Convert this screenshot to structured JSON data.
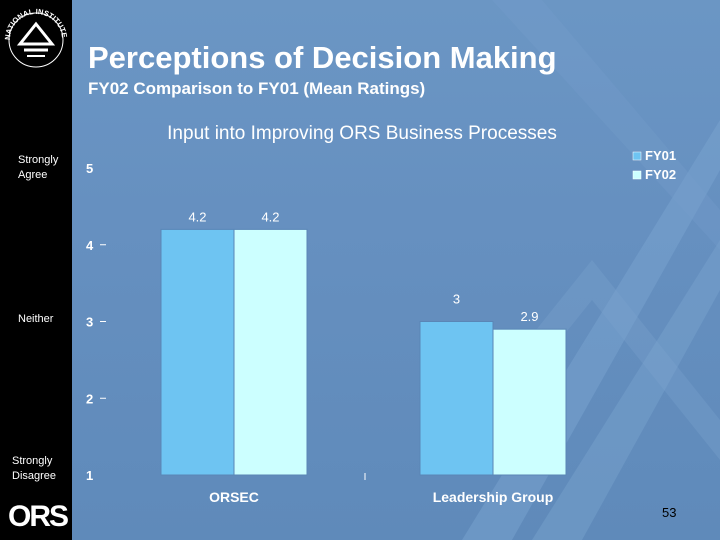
{
  "slide": {
    "title": "Perceptions of Decision Making",
    "subtitle": "FY02 Comparison to FY01 (Mean Ratings)",
    "page_number": "53",
    "logo_top_text": "NATIONAL INSTITUTES OF HEALTH",
    "logo_bottom_text": "ORS",
    "scale_labels": {
      "top": "Strongly Agree",
      "middle": "Neither",
      "bottom": "Strongly Disagree"
    },
    "colors": {
      "background": "#6690c0",
      "sidebar": "#000000",
      "fy01": "#6ec4f2",
      "fy02": "#ccffff",
      "text": "#ffffff"
    }
  },
  "chart_data": {
    "type": "bar",
    "title": "Input into Improving ORS Business Processes",
    "categories": [
      "ORSEC",
      "Leadership Group"
    ],
    "series": [
      {
        "name": "FY01",
        "values": [
          4.2,
          3
        ],
        "labels": [
          "4.2",
          "3"
        ]
      },
      {
        "name": "FY02",
        "values": [
          4.2,
          2.9
        ],
        "labels": [
          "4.2",
          "2.9"
        ]
      }
    ],
    "ylim": [
      1,
      5
    ],
    "yticks": [
      1,
      2,
      3,
      4,
      5
    ],
    "ytick_labels": [
      "1",
      "2",
      "3",
      "4",
      "5"
    ],
    "xlabel": "",
    "ylabel": "",
    "legend": "top-right",
    "grid": false
  }
}
